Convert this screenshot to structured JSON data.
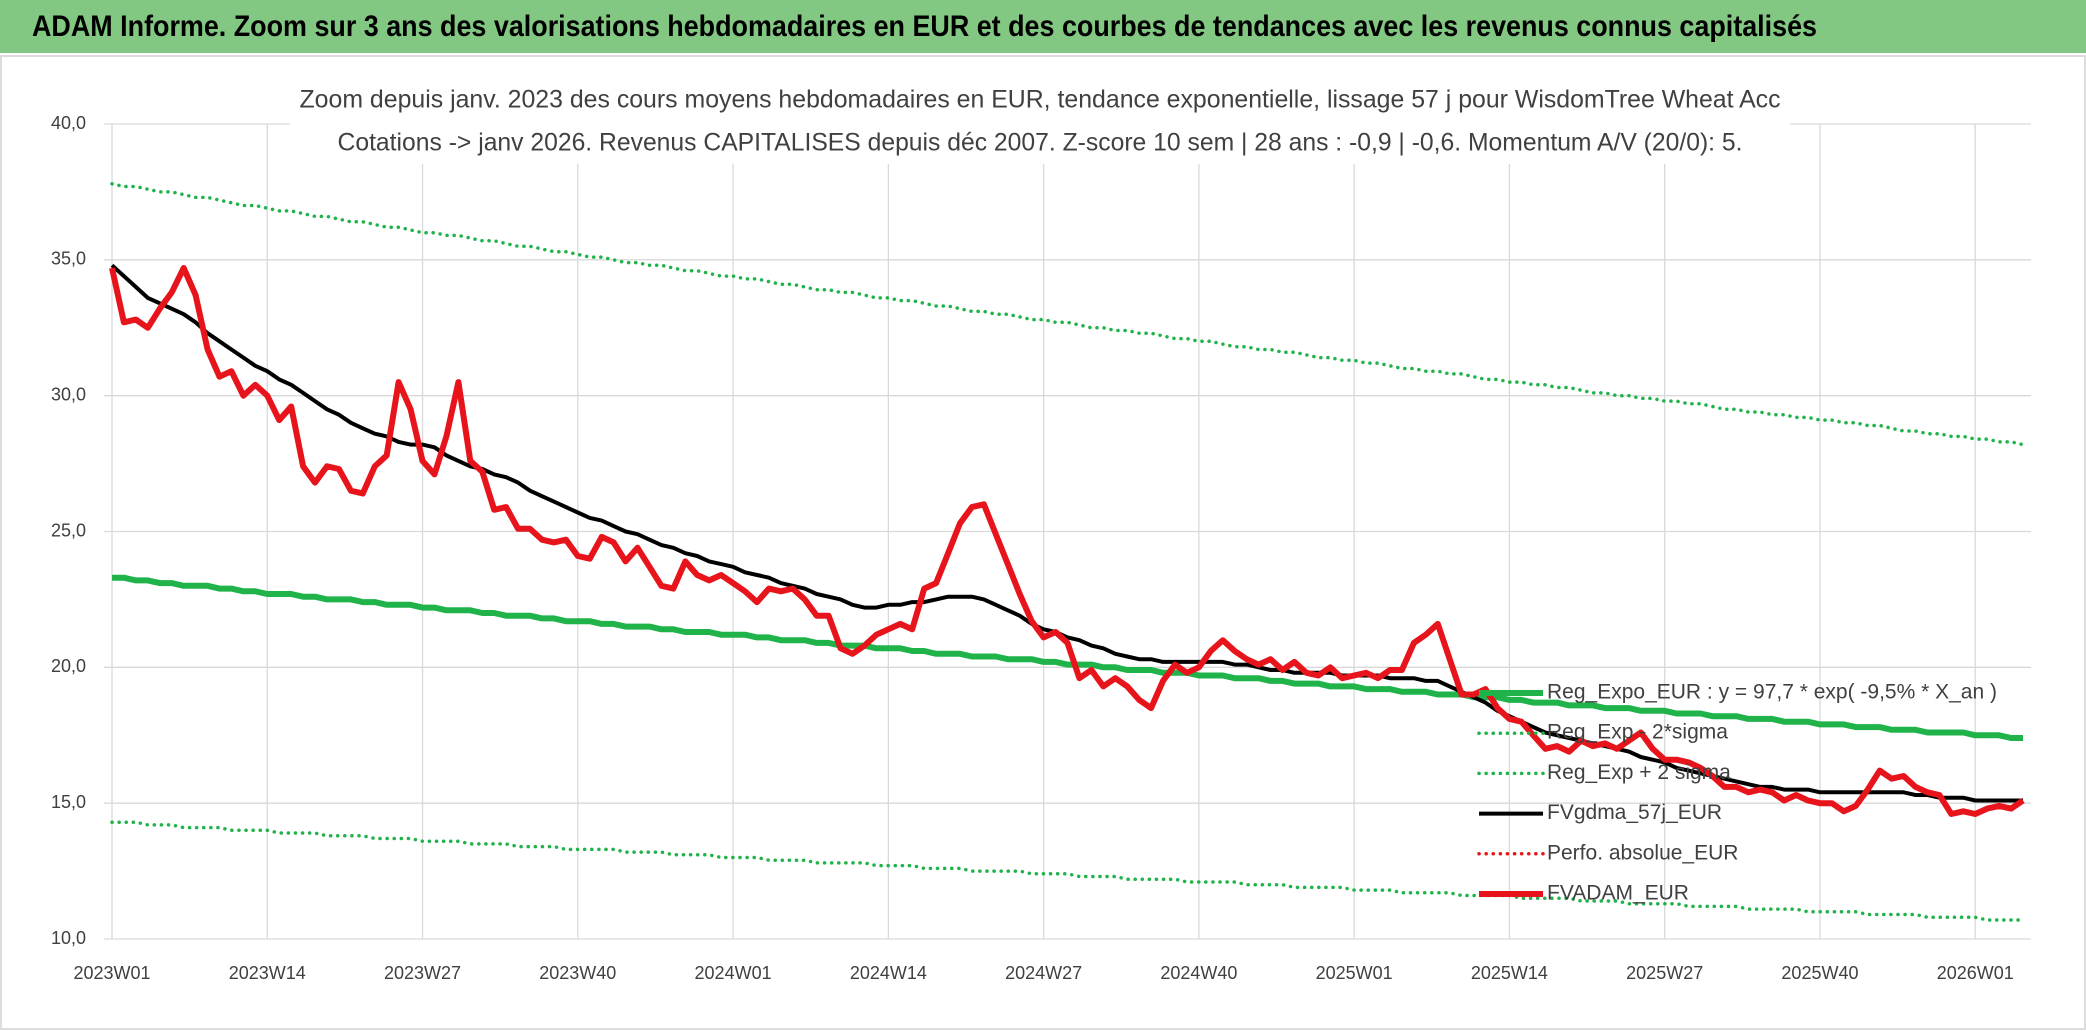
{
  "chart_data": {
    "type": "line",
    "title": "ADAM Informe. Zoom sur 3 ans des valorisations hebdomadaires en EUR et des courbes de tendances avec les revenus connus capitalisés",
    "subtitle": [
      "Zoom depuis janv. 2023 des cours moyens hebdomadaires en EUR, tendance exponentielle, lissage 57 j pour WisdomTree Wheat Acc",
      "Cotations -> janv 2026. Revenus CAPITALISES depuis déc 2007. Z-score 10 sem | 28 ans : -0,9 | -0,6. Momentum A/V (20/0): 5."
    ],
    "ylim": [
      10,
      40
    ],
    "yticks": [
      {
        "value": 10,
        "label": "10,0"
      },
      {
        "value": 15,
        "label": "15,0"
      },
      {
        "value": 20,
        "label": "20,0"
      },
      {
        "value": 25,
        "label": "25,0"
      },
      {
        "value": 30,
        "label": "30,0"
      },
      {
        "value": 35,
        "label": "35,0"
      },
      {
        "value": 40,
        "label": "40,0"
      }
    ],
    "grid": true,
    "legend": "lower right",
    "categories": [
      "2023W01",
      null,
      null,
      null,
      null,
      null,
      null,
      null,
      null,
      null,
      null,
      null,
      null,
      "2023W14",
      null,
      null,
      null,
      null,
      null,
      null,
      null,
      null,
      null,
      null,
      null,
      null,
      "2023W27",
      null,
      null,
      null,
      null,
      null,
      null,
      null,
      null,
      null,
      null,
      null,
      null,
      "2023W40",
      null,
      null,
      null,
      null,
      null,
      null,
      null,
      null,
      null,
      null,
      null,
      null,
      "2024W01",
      null,
      null,
      null,
      null,
      null,
      null,
      null,
      null,
      null,
      null,
      null,
      null,
      "2024W14",
      null,
      null,
      null,
      null,
      null,
      null,
      null,
      null,
      null,
      null,
      null,
      null,
      "2024W27",
      null,
      null,
      null,
      null,
      null,
      null,
      null,
      null,
      null,
      null,
      null,
      null,
      "2024W40",
      null,
      null,
      null,
      null,
      null,
      null,
      null,
      null,
      null,
      null,
      null,
      null,
      "2025W01",
      null,
      null,
      null,
      null,
      null,
      null,
      null,
      null,
      null,
      null,
      null,
      null,
      "2025W14",
      null,
      null,
      null,
      null,
      null,
      null,
      null,
      null,
      null,
      null,
      null,
      null,
      "2025W27",
      null,
      null,
      null,
      null,
      null,
      null,
      null,
      null,
      null,
      null,
      null,
      null,
      "2025W40",
      null,
      null,
      null,
      null,
      null,
      null,
      null,
      null,
      null,
      null,
      null,
      null,
      "2026W01",
      null,
      null,
      null,
      null
    ],
    "series": [
      {
        "name": "Reg_Expo_EUR : y = 97,7 * exp( -9,5% *  X_an )",
        "color": "#1fb34a",
        "style": "thick",
        "values": [
          23.3,
          23.3,
          23.2,
          23.2,
          23.1,
          23.1,
          23.0,
          23.0,
          23.0,
          22.9,
          22.9,
          22.8,
          22.8,
          22.7,
          22.7,
          22.7,
          22.6,
          22.6,
          22.5,
          22.5,
          22.5,
          22.4,
          22.4,
          22.3,
          22.3,
          22.3,
          22.2,
          22.2,
          22.1,
          22.1,
          22.1,
          22.0,
          22.0,
          21.9,
          21.9,
          21.9,
          21.8,
          21.8,
          21.7,
          21.7,
          21.7,
          21.6,
          21.6,
          21.5,
          21.5,
          21.5,
          21.4,
          21.4,
          21.3,
          21.3,
          21.3,
          21.2,
          21.2,
          21.2,
          21.1,
          21.1,
          21.0,
          21.0,
          21.0,
          20.9,
          20.9,
          20.8,
          20.8,
          20.8,
          20.7,
          20.7,
          20.7,
          20.6,
          20.6,
          20.5,
          20.5,
          20.5,
          20.4,
          20.4,
          20.4,
          20.3,
          20.3,
          20.3,
          20.2,
          20.2,
          20.1,
          20.1,
          20.1,
          20.0,
          20.0,
          19.9,
          19.9,
          19.9,
          19.8,
          19.8,
          19.8,
          19.7,
          19.7,
          19.7,
          19.6,
          19.6,
          19.6,
          19.5,
          19.5,
          19.4,
          19.4,
          19.4,
          19.3,
          19.3,
          19.3,
          19.2,
          19.2,
          19.2,
          19.1,
          19.1,
          19.1,
          19.0,
          19.0,
          19.0,
          18.9,
          18.9,
          18.9,
          18.8,
          18.8,
          18.7,
          18.7,
          18.7,
          18.6,
          18.6,
          18.6,
          18.5,
          18.5,
          18.5,
          18.4,
          18.4,
          18.4,
          18.3,
          18.3,
          18.3,
          18.2,
          18.2,
          18.2,
          18.1,
          18.1,
          18.1,
          18.0,
          18.0,
          18.0,
          17.9,
          17.9,
          17.9,
          17.8,
          17.8,
          17.8,
          17.7,
          17.7,
          17.7,
          17.6,
          17.6,
          17.6,
          17.6,
          17.5,
          17.5,
          17.5,
          17.4,
          17.4
        ]
      },
      {
        "name": "Reg_Exp - 2*sigma",
        "color": "#1fb34a",
        "style": "dotted",
        "values": [
          14.3,
          14.3,
          14.3,
          14.2,
          14.2,
          14.2,
          14.1,
          14.1,
          14.1,
          14.1,
          14.0,
          14.0,
          14.0,
          14.0,
          13.9,
          13.9,
          13.9,
          13.9,
          13.8,
          13.8,
          13.8,
          13.8,
          13.7,
          13.7,
          13.7,
          13.7,
          13.6,
          13.6,
          13.6,
          13.6,
          13.5,
          13.5,
          13.5,
          13.5,
          13.4,
          13.4,
          13.4,
          13.4,
          13.3,
          13.3,
          13.3,
          13.3,
          13.3,
          13.2,
          13.2,
          13.2,
          13.2,
          13.1,
          13.1,
          13.1,
          13.1,
          13.0,
          13.0,
          13.0,
          13.0,
          12.9,
          12.9,
          12.9,
          12.9,
          12.8,
          12.8,
          12.8,
          12.8,
          12.8,
          12.7,
          12.7,
          12.7,
          12.7,
          12.6,
          12.6,
          12.6,
          12.6,
          12.5,
          12.5,
          12.5,
          12.5,
          12.5,
          12.4,
          12.4,
          12.4,
          12.4,
          12.3,
          12.3,
          12.3,
          12.3,
          12.2,
          12.2,
          12.2,
          12.2,
          12.2,
          12.1,
          12.1,
          12.1,
          12.1,
          12.1,
          12.0,
          12.0,
          12.0,
          12.0,
          11.9,
          11.9,
          11.9,
          11.9,
          11.9,
          11.8,
          11.8,
          11.8,
          11.8,
          11.7,
          11.7,
          11.7,
          11.7,
          11.7,
          11.6,
          11.6,
          11.6,
          11.6,
          11.6,
          11.5,
          11.5,
          11.5,
          11.5,
          11.5,
          11.4,
          11.4,
          11.4,
          11.4,
          11.3,
          11.3,
          11.3,
          11.3,
          11.3,
          11.2,
          11.2,
          11.2,
          11.2,
          11.2,
          11.1,
          11.1,
          11.1,
          11.1,
          11.1,
          11.0,
          11.0,
          11.0,
          11.0,
          11.0,
          10.9,
          10.9,
          10.9,
          10.9,
          10.9,
          10.8,
          10.8,
          10.8,
          10.8,
          10.8,
          10.7,
          10.7,
          10.7,
          10.7
        ]
      },
      {
        "name": "Reg_Exp + 2 sigma",
        "color": "#1fb34a",
        "style": "dotted",
        "values": [
          37.8,
          37.7,
          37.7,
          37.6,
          37.5,
          37.5,
          37.4,
          37.3,
          37.3,
          37.2,
          37.1,
          37.0,
          37.0,
          36.9,
          36.8,
          36.8,
          36.7,
          36.6,
          36.6,
          36.5,
          36.4,
          36.4,
          36.3,
          36.2,
          36.2,
          36.1,
          36.0,
          36.0,
          35.9,
          35.9,
          35.8,
          35.7,
          35.7,
          35.6,
          35.5,
          35.5,
          35.4,
          35.3,
          35.3,
          35.2,
          35.1,
          35.1,
          35.0,
          34.9,
          34.9,
          34.8,
          34.8,
          34.7,
          34.6,
          34.6,
          34.5,
          34.4,
          34.4,
          34.3,
          34.3,
          34.2,
          34.1,
          34.1,
          34.0,
          33.9,
          33.9,
          33.8,
          33.8,
          33.7,
          33.6,
          33.6,
          33.5,
          33.5,
          33.4,
          33.3,
          33.3,
          33.2,
          33.1,
          33.1,
          33.0,
          33.0,
          32.9,
          32.8,
          32.8,
          32.7,
          32.7,
          32.6,
          32.5,
          32.5,
          32.4,
          32.4,
          32.3,
          32.3,
          32.2,
          32.1,
          32.1,
          32.0,
          32.0,
          31.9,
          31.8,
          31.8,
          31.7,
          31.7,
          31.6,
          31.6,
          31.5,
          31.4,
          31.4,
          31.3,
          31.3,
          31.2,
          31.2,
          31.1,
          31.0,
          31.0,
          30.9,
          30.9,
          30.8,
          30.8,
          30.7,
          30.6,
          30.6,
          30.5,
          30.5,
          30.4,
          30.4,
          30.3,
          30.3,
          30.2,
          30.1,
          30.1,
          30.0,
          30.0,
          29.9,
          29.9,
          29.8,
          29.8,
          29.7,
          29.7,
          29.6,
          29.5,
          29.5,
          29.4,
          29.4,
          29.3,
          29.3,
          29.2,
          29.2,
          29.1,
          29.1,
          29.0,
          29.0,
          28.9,
          28.9,
          28.8,
          28.7,
          28.7,
          28.6,
          28.6,
          28.5,
          28.5,
          28.4,
          28.4,
          28.3,
          28.3,
          28.2
        ]
      },
      {
        "name": "FVgdma_57j_EUR",
        "color": "#000000",
        "style": "solid",
        "values": [
          34.8,
          34.4,
          34.0,
          33.6,
          33.4,
          33.2,
          33.0,
          32.7,
          32.3,
          32.0,
          31.7,
          31.4,
          31.1,
          30.9,
          30.6,
          30.4,
          30.1,
          29.8,
          29.5,
          29.3,
          29.0,
          28.8,
          28.6,
          28.5,
          28.3,
          28.2,
          28.2,
          28.1,
          27.8,
          27.6,
          27.4,
          27.3,
          27.1,
          27.0,
          26.8,
          26.5,
          26.3,
          26.1,
          25.9,
          25.7,
          25.5,
          25.4,
          25.2,
          25.0,
          24.9,
          24.7,
          24.5,
          24.4,
          24.2,
          24.1,
          23.9,
          23.8,
          23.7,
          23.5,
          23.4,
          23.3,
          23.1,
          23.0,
          22.9,
          22.7,
          22.6,
          22.5,
          22.3,
          22.2,
          22.2,
          22.3,
          22.3,
          22.4,
          22.4,
          22.5,
          22.6,
          22.6,
          22.6,
          22.5,
          22.3,
          22.1,
          21.9,
          21.6,
          21.4,
          21.3,
          21.1,
          21.0,
          20.8,
          20.7,
          20.5,
          20.4,
          20.3,
          20.3,
          20.2,
          20.2,
          20.2,
          20.2,
          20.2,
          20.2,
          20.1,
          20.1,
          20.0,
          19.9,
          19.9,
          19.8,
          19.8,
          19.8,
          19.8,
          19.7,
          19.7,
          19.7,
          19.7,
          19.6,
          19.6,
          19.6,
          19.5,
          19.5,
          19.3,
          19.1,
          18.9,
          18.7,
          18.4,
          18.2,
          18.0,
          17.8,
          17.6,
          17.5,
          17.4,
          17.3,
          17.2,
          17.1,
          17.0,
          16.9,
          16.7,
          16.6,
          16.5,
          16.3,
          16.2,
          16.1,
          16.0,
          15.9,
          15.8,
          15.7,
          15.6,
          15.6,
          15.5,
          15.5,
          15.5,
          15.4,
          15.4,
          15.4,
          15.4,
          15.4,
          15.4,
          15.4,
          15.4,
          15.3,
          15.3,
          15.2,
          15.2,
          15.2,
          15.1,
          15.1,
          15.1,
          15.1,
          15.1
        ]
      },
      {
        "name": "Perfo. absolue_EUR",
        "color": "#e8141c",
        "style": "dotted",
        "values": [
          null,
          null,
          null,
          null,
          null,
          null,
          null,
          null,
          null,
          null,
          null,
          null,
          null,
          null,
          null,
          null,
          null,
          null,
          null,
          null,
          null,
          null,
          null,
          null,
          null,
          null,
          null,
          null,
          null,
          null,
          null,
          null,
          null,
          null,
          null,
          null,
          null,
          null,
          null,
          null,
          null,
          null,
          null,
          null,
          null,
          null,
          null,
          null,
          null,
          null,
          null,
          null,
          null,
          null,
          null,
          null,
          null,
          null,
          null,
          null,
          null,
          null,
          null,
          null,
          null,
          null,
          null,
          null,
          null,
          null,
          null,
          null,
          null,
          null,
          null,
          null,
          null,
          null,
          null,
          null,
          null,
          null,
          null,
          null,
          null,
          null,
          null,
          null,
          null,
          null,
          null,
          null,
          null,
          null,
          null,
          null,
          null,
          null,
          null,
          null,
          null,
          null,
          null,
          null,
          null,
          null,
          null,
          null,
          null,
          null,
          null,
          null,
          null,
          null,
          null,
          null,
          null,
          null,
          null,
          null,
          null,
          null,
          null,
          null,
          null,
          null,
          null,
          null,
          null,
          null,
          null,
          null,
          null,
          null,
          null,
          null,
          null,
          null,
          null,
          null,
          null,
          null,
          null,
          null,
          null,
          null,
          null,
          null,
          null,
          null,
          null,
          null,
          null,
          null,
          null,
          null,
          null,
          null,
          null,
          null,
          null
        ]
      },
      {
        "name": "FVADAM_EUR",
        "color": "#e8141c",
        "style": "thick",
        "values": [
          34.7,
          32.7,
          32.8,
          32.5,
          33.2,
          33.8,
          34.7,
          33.7,
          31.7,
          30.7,
          30.9,
          30.0,
          30.4,
          30.0,
          29.1,
          29.6,
          27.4,
          26.8,
          27.4,
          27.3,
          26.5,
          26.4,
          27.4,
          27.8,
          30.5,
          29.5,
          27.6,
          27.1,
          28.5,
          30.5,
          27.6,
          27.2,
          25.8,
          25.9,
          25.1,
          25.1,
          24.7,
          24.6,
          24.7,
          24.1,
          24.0,
          24.8,
          24.6,
          23.9,
          24.4,
          23.7,
          23.0,
          22.9,
          23.9,
          23.4,
          23.2,
          23.4,
          23.1,
          22.8,
          22.4,
          22.9,
          22.8,
          22.9,
          22.5,
          21.9,
          21.9,
          20.7,
          20.5,
          20.8,
          21.2,
          21.4,
          21.6,
          21.4,
          22.9,
          23.1,
          24.2,
          25.3,
          25.9,
          26.0,
          24.9,
          23.8,
          22.7,
          21.7,
          21.1,
          21.3,
          20.9,
          19.6,
          19.9,
          19.3,
          19.6,
          19.3,
          18.8,
          18.5,
          19.5,
          20.1,
          19.8,
          20.0,
          20.6,
          21.0,
          20.6,
          20.3,
          20.1,
          20.3,
          19.9,
          20.2,
          19.8,
          19.7,
          20.0,
          19.6,
          19.7,
          19.8,
          19.6,
          19.9,
          19.9,
          20.9,
          21.2,
          21.6,
          20.3,
          19.0,
          19.0,
          19.2,
          18.5,
          18.1,
          18.0,
          17.5,
          17.0,
          17.1,
          16.9,
          17.3,
          17.1,
          17.2,
          17.0,
          17.3,
          17.6,
          17.0,
          16.6,
          16.6,
          16.5,
          16.3,
          16.0,
          15.6,
          15.6,
          15.4,
          15.5,
          15.4,
          15.1,
          15.3,
          15.1,
          15.0,
          15.0,
          14.7,
          14.9,
          15.5,
          16.2,
          15.9,
          16.0,
          15.6,
          15.4,
          15.3,
          14.6,
          14.7,
          14.6,
          14.8,
          14.9,
          14.8,
          15.1
        ]
      }
    ]
  }
}
